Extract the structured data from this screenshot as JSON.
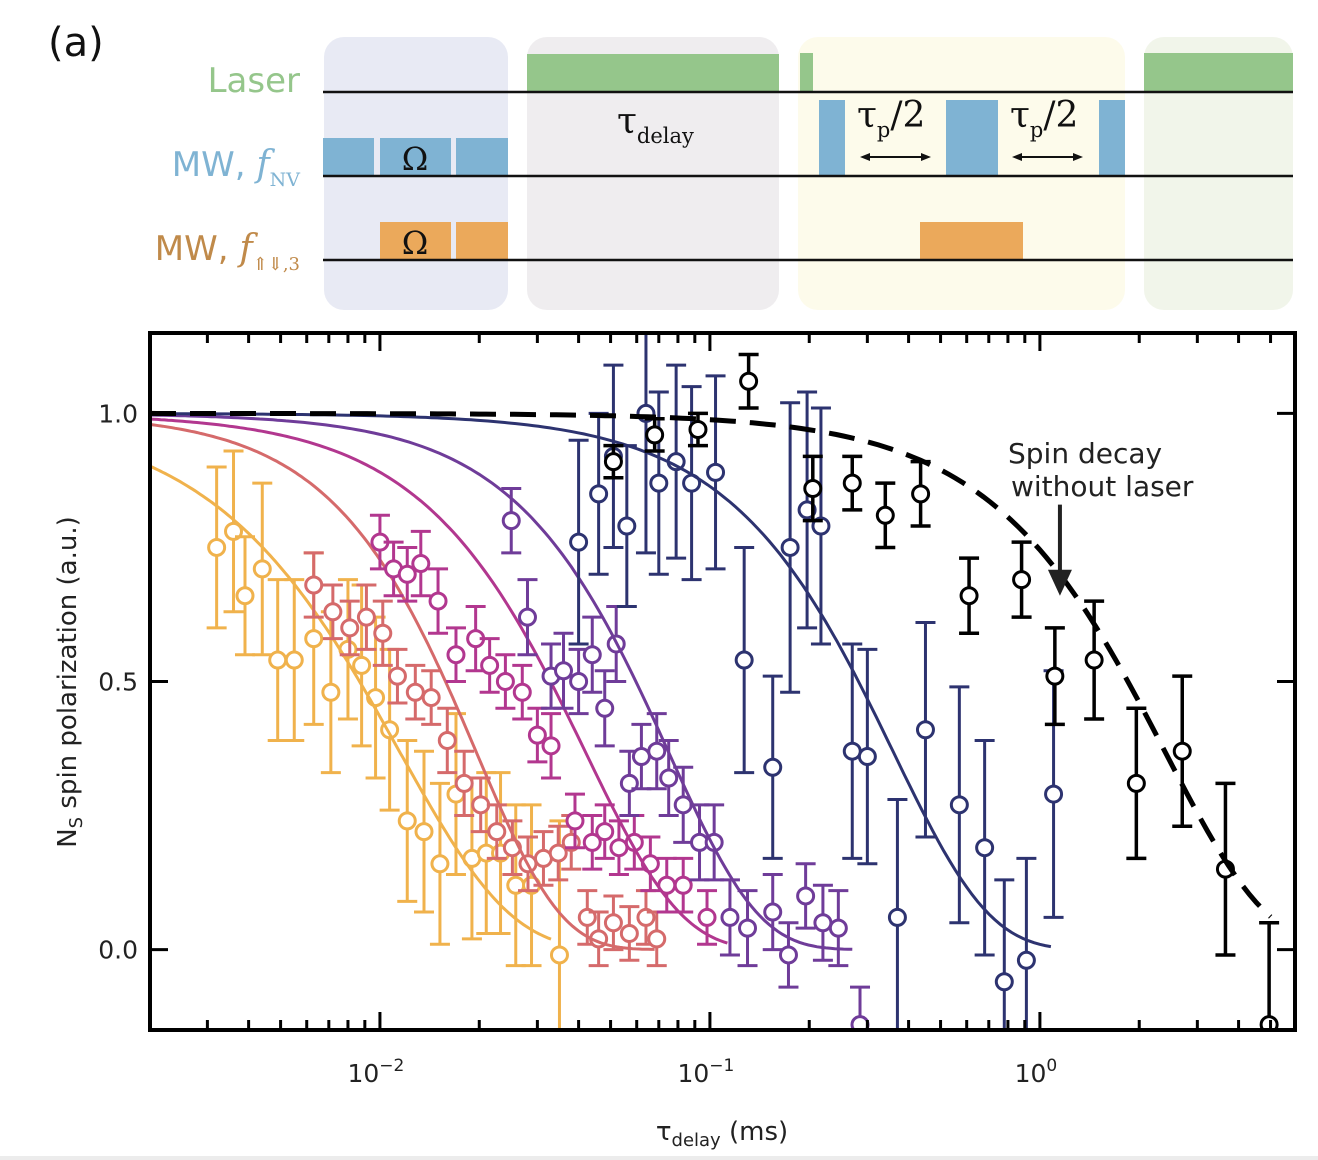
{
  "panel_label": "(a)",
  "pulse_sequence": {
    "channels": [
      {
        "name": "laser",
        "label": "Laser",
        "color": "#95c68b"
      },
      {
        "name": "mw-nv",
        "label": "MW, ",
        "freq_symbol": "f",
        "freq_sub": "NV",
        "color": "#7fb3d3"
      },
      {
        "name": "mw-n",
        "label": "MW, ",
        "freq_symbol": "f",
        "freq_sub": "⇑⇓,3",
        "color": "#eba95b",
        "label_color": "#c08a4a"
      }
    ],
    "blocks": [
      {
        "name": "polarization",
        "color": "#e8eaf4"
      },
      {
        "name": "delay",
        "color": "#efedef",
        "label": "τ",
        "label_sub": "delay"
      },
      {
        "name": "readout",
        "color": "#fdfbeb"
      },
      {
        "name": "reinit",
        "color": "#f1f5ea"
      }
    ],
    "omega_label": "Ω",
    "tau_label": "τ",
    "tau_sub": "p",
    "tau_suffix": "/2"
  },
  "chart_data": {
    "type": "scatter",
    "title": "",
    "xlabel": "τ",
    "xlabel_sub": "delay",
    "xlabel_unit": " (ms)",
    "ylabel": "N",
    "ylabel_sub": "S",
    "ylabel_rest": " spin polarization (a.u.)",
    "xscale": "log",
    "xlim": [
      0.00201,
      5.93
    ],
    "ylim": [
      -0.15,
      1.15
    ],
    "x_ticks": [
      {
        "value": 0.01,
        "base": "10",
        "exp": "−2"
      },
      {
        "value": 0.1,
        "base": "10",
        "exp": "−1"
      },
      {
        "value": 1,
        "base": "10",
        "exp": "0"
      }
    ],
    "y_ticks": [
      {
        "value": 0.0,
        "label": "0.0"
      },
      {
        "value": 0.5,
        "label": "0.5"
      },
      {
        "value": 1.0,
        "label": "1.0"
      }
    ],
    "grid": false,
    "annotation": {
      "lines": [
        "Spin decay",
        "without laser"
      ],
      "arrow_x": 1.15,
      "arrow_y_from": 0.83,
      "arrow_y_to": 0.66
    },
    "series": [
      {
        "name": "series-yellow",
        "color": "#f0b24c",
        "fit_T": 0.0115,
        "fit_n": 1.3,
        "fit_xrange": [
          0.00201,
          0.033
        ],
        "points": [
          [
            0.0032,
            0.75,
            0.15
          ],
          [
            0.0036,
            0.78,
            0.15
          ],
          [
            0.0039,
            0.66,
            0.11
          ],
          [
            0.0044,
            0.71,
            0.16
          ],
          [
            0.0049,
            0.54,
            0.15
          ],
          [
            0.0055,
            0.54,
            0.15
          ],
          [
            0.0063,
            0.58,
            0.16
          ],
          [
            0.0071,
            0.48,
            0.15
          ],
          [
            0.008,
            0.56,
            0.13
          ],
          [
            0.0088,
            0.53,
            0.15
          ],
          [
            0.0097,
            0.47,
            0.15
          ],
          [
            0.0107,
            0.41,
            0.15
          ],
          [
            0.0121,
            0.24,
            0.15
          ],
          [
            0.0136,
            0.22,
            0.15
          ],
          [
            0.0152,
            0.16,
            0.15
          ],
          [
            0.017,
            0.29,
            0.15
          ],
          [
            0.019,
            0.17,
            0.15
          ],
          [
            0.021,
            0.18,
            0.15
          ],
          [
            0.0232,
            0.18,
            0.15
          ],
          [
            0.0258,
            0.12,
            0.15
          ],
          [
            0.0288,
            0.12,
            0.15
          ],
          [
            0.035,
            -0.01,
            0.25
          ]
        ]
      },
      {
        "name": "series-coral",
        "color": "#d56a6b",
        "fit_T": 0.0196,
        "fit_n": 1.7,
        "fit_xrange": [
          0.00201,
          0.068
        ],
        "points": [
          [
            0.0063,
            0.68,
            0.06
          ],
          [
            0.0072,
            0.63,
            0.05
          ],
          [
            0.0081,
            0.6,
            0.05
          ],
          [
            0.0091,
            0.62,
            0.06
          ],
          [
            0.0102,
            0.59,
            0.06
          ],
          [
            0.0113,
            0.51,
            0.05
          ],
          [
            0.0128,
            0.48,
            0.05
          ],
          [
            0.0143,
            0.47,
            0.05
          ],
          [
            0.016,
            0.39,
            0.06
          ],
          [
            0.018,
            0.31,
            0.06
          ],
          [
            0.0202,
            0.27,
            0.05
          ],
          [
            0.0226,
            0.22,
            0.05
          ],
          [
            0.0252,
            0.19,
            0.05
          ],
          [
            0.0281,
            0.16,
            0.05
          ],
          [
            0.0313,
            0.17,
            0.05
          ],
          [
            0.0347,
            0.18,
            0.05
          ],
          [
            0.038,
            0.2,
            0.05
          ],
          [
            0.0425,
            0.06,
            0.05
          ],
          [
            0.046,
            0.02,
            0.05
          ],
          [
            0.051,
            0.05,
            0.05
          ],
          [
            0.057,
            0.03,
            0.05
          ],
          [
            0.064,
            0.06,
            0.05
          ],
          [
            0.069,
            0.02,
            0.05
          ]
        ]
      },
      {
        "name": "series-magenta",
        "color": "#b2378f",
        "fit_T": 0.042,
        "fit_n": 1.5,
        "fit_xrange": [
          0.00201,
          0.113
        ],
        "points": [
          [
            0.01,
            0.76,
            0.05
          ],
          [
            0.011,
            0.71,
            0.05
          ],
          [
            0.0121,
            0.7,
            0.05
          ],
          [
            0.0133,
            0.72,
            0.06
          ],
          [
            0.015,
            0.65,
            0.06
          ],
          [
            0.017,
            0.55,
            0.05
          ],
          [
            0.0195,
            0.58,
            0.06
          ],
          [
            0.0215,
            0.53,
            0.05
          ],
          [
            0.024,
            0.5,
            0.05
          ],
          [
            0.027,
            0.48,
            0.05
          ],
          [
            0.03,
            0.4,
            0.05
          ],
          [
            0.033,
            0.38,
            0.06
          ],
          [
            0.039,
            0.24,
            0.05
          ],
          [
            0.044,
            0.2,
            0.05
          ],
          [
            0.048,
            0.22,
            0.05
          ],
          [
            0.053,
            0.19,
            0.05
          ],
          [
            0.059,
            0.2,
            0.05
          ],
          [
            0.066,
            0.16,
            0.05
          ],
          [
            0.074,
            0.12,
            0.05
          ],
          [
            0.083,
            0.12,
            0.05
          ],
          [
            0.098,
            0.06,
            0.05
          ]
        ]
      },
      {
        "name": "series-purple",
        "color": "#6f3c99",
        "fit_T": 0.075,
        "fit_n": 1.6,
        "fit_xrange": [
          0.00201,
          0.27
        ],
        "points": [
          [
            0.025,
            0.8,
            0.06
          ],
          [
            0.028,
            0.62,
            0.07
          ],
          [
            0.033,
            0.51,
            0.06
          ],
          [
            0.036,
            0.52,
            0.07
          ],
          [
            0.04,
            0.5,
            0.06
          ],
          [
            0.044,
            0.55,
            0.07
          ],
          [
            0.048,
            0.45,
            0.07
          ],
          [
            0.052,
            0.57,
            0.07
          ],
          [
            0.057,
            0.31,
            0.06
          ],
          [
            0.062,
            0.36,
            0.06
          ],
          [
            0.069,
            0.37,
            0.07
          ],
          [
            0.075,
            0.32,
            0.07
          ],
          [
            0.083,
            0.27,
            0.07
          ],
          [
            0.093,
            0.2,
            0.07
          ],
          [
            0.103,
            0.2,
            0.07
          ],
          [
            0.115,
            0.06,
            0.07
          ],
          [
            0.13,
            0.04,
            0.07
          ],
          [
            0.155,
            0.07,
            0.07
          ],
          [
            0.173,
            -0.01,
            0.06
          ],
          [
            0.195,
            0.1,
            0.06
          ],
          [
            0.22,
            0.05,
            0.07
          ],
          [
            0.245,
            0.04,
            0.07
          ],
          [
            0.285,
            -0.14,
            0.07
          ]
        ]
      },
      {
        "name": "series-navy",
        "color": "#2d3370",
        "fit_T": 0.36,
        "fit_n": 1.5,
        "fit_xrange": [
          0.00201,
          1.08
        ],
        "points": [
          [
            0.04,
            0.76,
            0.19
          ],
          [
            0.046,
            0.85,
            0.15
          ],
          [
            0.051,
            0.92,
            0.17
          ],
          [
            0.056,
            0.79,
            0.15
          ],
          [
            0.064,
            1.0,
            0.26
          ],
          [
            0.07,
            0.87,
            0.17
          ],
          [
            0.079,
            0.91,
            0.18
          ],
          [
            0.088,
            0.87,
            0.18
          ],
          [
            0.104,
            0.89,
            0.18
          ],
          [
            0.127,
            0.54,
            0.21
          ],
          [
            0.155,
            0.34,
            0.17
          ],
          [
            0.175,
            0.75,
            0.27
          ],
          [
            0.197,
            0.82,
            0.22
          ],
          [
            0.217,
            0.79,
            0.22
          ],
          [
            0.27,
            0.37,
            0.2
          ],
          [
            0.3,
            0.36,
            0.2
          ],
          [
            0.37,
            0.06,
            0.22
          ],
          [
            0.45,
            0.41,
            0.2
          ],
          [
            0.57,
            0.27,
            0.22
          ],
          [
            0.68,
            0.19,
            0.2
          ],
          [
            0.78,
            -0.06,
            0.19
          ],
          [
            0.91,
            -0.02,
            0.19
          ],
          [
            1.1,
            0.29,
            0.23
          ]
        ]
      },
      {
        "name": "series-black",
        "color": "#000000",
        "fit_T": 2.4,
        "fit_n": 1.4,
        "fit_xrange": [
          0.00201,
          5.0
        ],
        "fit_dashed": true,
        "points": [
          [
            0.051,
            0.91,
            0.03
          ],
          [
            0.068,
            0.96,
            0.03
          ],
          [
            0.092,
            0.97,
            0.03
          ],
          [
            0.131,
            1.06,
            0.05
          ],
          [
            0.205,
            0.86,
            0.06
          ],
          [
            0.27,
            0.87,
            0.05
          ],
          [
            0.34,
            0.81,
            0.06
          ],
          [
            0.435,
            0.85,
            0.06
          ],
          [
            0.61,
            0.66,
            0.07
          ],
          [
            0.88,
            0.69,
            0.07
          ],
          [
            1.11,
            0.51,
            0.09
          ],
          [
            1.46,
            0.54,
            0.11
          ],
          [
            1.96,
            0.31,
            0.14
          ],
          [
            2.7,
            0.37,
            0.14
          ],
          [
            3.65,
            0.15,
            0.16
          ],
          [
            4.95,
            -0.14,
            0.19
          ]
        ]
      }
    ]
  }
}
